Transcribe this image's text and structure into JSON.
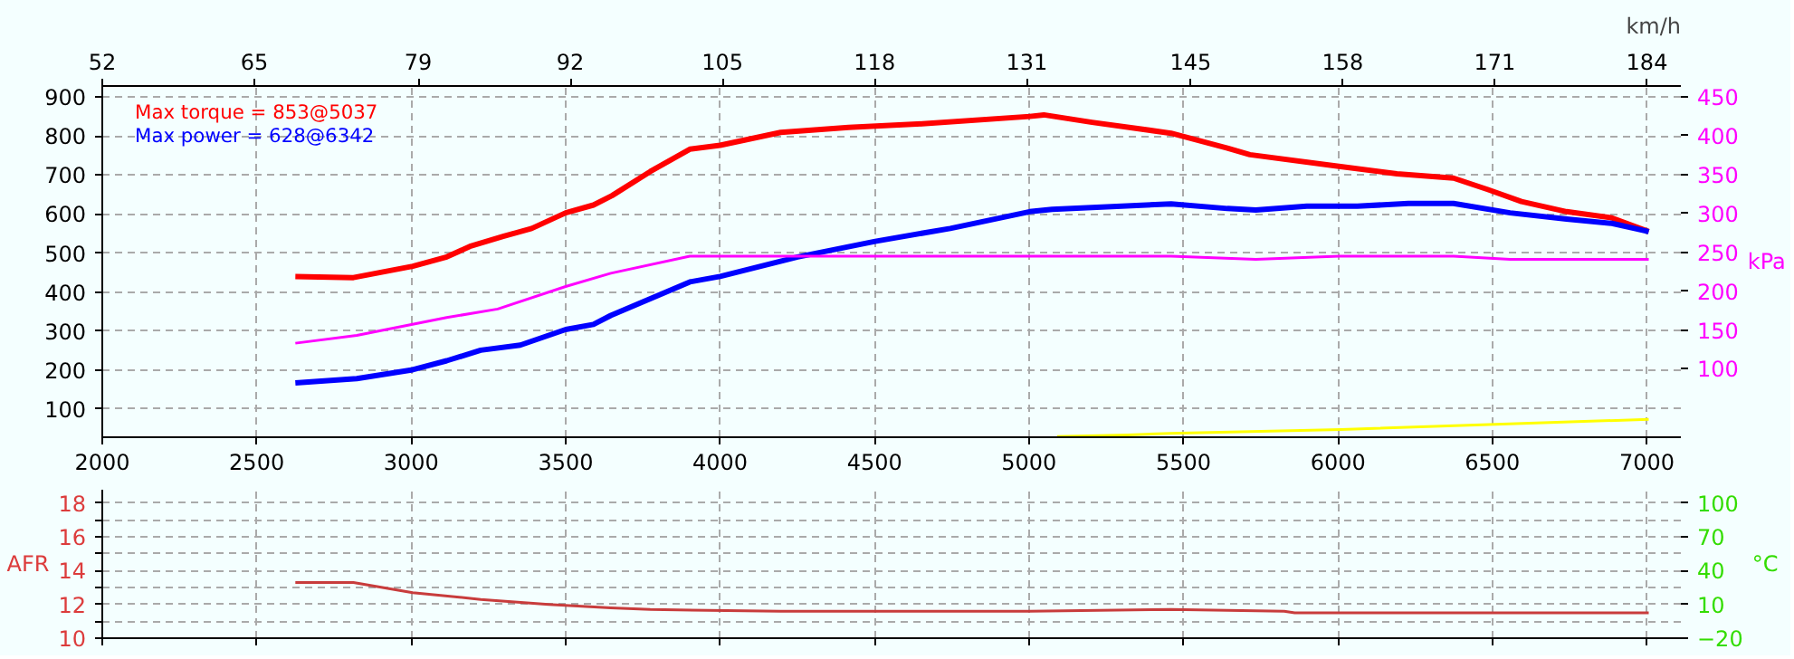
{
  "chart_data": [
    {
      "type": "line",
      "xlim": [
        2000,
        7110
      ],
      "xticks": [
        2000,
        2500,
        3000,
        3500,
        4000,
        4500,
        5000,
        5500,
        6000,
        6500,
        7000
      ],
      "x2lim": [
        52,
        186.9
      ],
      "x2ticks": [
        52,
        65,
        79,
        92,
        105,
        118,
        131,
        145,
        158,
        171,
        184
      ],
      "x2label": "km/h",
      "ylim": [
        28,
        928
      ],
      "yticks": [
        100,
        200,
        300,
        400,
        500,
        600,
        700,
        800,
        900
      ],
      "y2lim": [
        12,
        464
      ],
      "y2ticks": [
        100,
        150,
        200,
        250,
        300,
        350,
        400,
        450
      ],
      "y2label": "kPa",
      "grid": true,
      "annotations": [
        "Max torque = 853@5037",
        "Max power = 628@6342"
      ],
      "series": [
        {
          "color": "#ff0000",
          "x": [
            2625,
            2813,
            3005,
            3115,
            3190,
            3300,
            3390,
            3500,
            3590,
            3650,
            3774,
            3902,
            4000,
            4196,
            4416,
            4654,
            5002,
            5048,
            5204,
            5460,
            5642,
            5715,
            6003,
            6191,
            6374,
            6484,
            6594,
            6740,
            6887,
            7006
          ],
          "values": [
            440,
            437,
            466,
            490,
            517,
            543,
            563,
            603,
            623,
            647,
            709,
            766,
            776,
            809,
            822,
            831,
            850,
            854,
            835,
            807,
            769,
            752,
            722,
            703,
            692,
            663,
            632,
            606,
            590,
            555
          ]
        },
        {
          "color": "#0000ff",
          "x": [
            2625,
            2824,
            3005,
            3115,
            3225,
            3353,
            3500,
            3590,
            3646,
            3902,
            4000,
            4251,
            4502,
            4745,
            5002,
            5075,
            5460,
            5642,
            5734,
            5899,
            6063,
            6228,
            6374,
            6557,
            6740,
            6887,
            7006
          ],
          "values": [
            167,
            178,
            201,
            224,
            251,
            264,
            304,
            317,
            340,
            426,
            440,
            490,
            530,
            563,
            606,
            612,
            626,
            614,
            610,
            620,
            620,
            627,
            627,
            603,
            587,
            576,
            555
          ]
        },
        {
          "color": "#ff00ff",
          "axis": "y2",
          "x": [
            2625,
            2824,
            3115,
            3280,
            3500,
            3646,
            3902,
            4500,
            5000,
            5460,
            5734,
            6003,
            6374,
            6557,
            7006
          ],
          "values": [
            133,
            143,
            166,
            177,
            206,
            223,
            245,
            245,
            245,
            245,
            241,
            245,
            245,
            241,
            241
          ]
        },
        {
          "color": "#ffff00",
          "axis": "y2",
          "x": [
            5091,
            5320,
            5459,
            6009,
            6466,
            7006
          ],
          "values": [
            13,
            15,
            17,
            22,
            28,
            35
          ]
        }
      ]
    },
    {
      "type": "line",
      "xlim": [
        2000,
        7110
      ],
      "xticks": [
        2000,
        2500,
        3000,
        3500,
        4000,
        4500,
        5000,
        5500,
        6000,
        6500,
        7000
      ],
      "tick_labels": "y",
      "ylim": [
        10,
        18.8
      ],
      "yticks": [
        10,
        {
          "value": 11,
          "label": null
        },
        12,
        {
          "value": 13,
          "label": null
        },
        14,
        {
          "value": 15,
          "label": null
        },
        16,
        {
          "value": 17,
          "label": null
        },
        18
      ],
      "ylabel": "AFR",
      "y2lim": [
        -20,
        111.7
      ],
      "y2ticks": [
        -20,
        10,
        40,
        70,
        100
      ],
      "y2label": "°C",
      "grid": true,
      "series": [
        {
          "color": "#c83c3c",
          "x": [
            2625,
            2813,
            3005,
            3225,
            3445,
            3646,
            3774,
            4196,
            5000,
            5459,
            5826,
            5860,
            6500,
            7006
          ],
          "values": [
            13.3,
            13.3,
            12.7,
            12.3,
            12.0,
            11.8,
            11.7,
            11.6,
            11.6,
            11.7,
            11.6,
            11.5,
            11.5,
            11.5
          ]
        }
      ]
    }
  ]
}
